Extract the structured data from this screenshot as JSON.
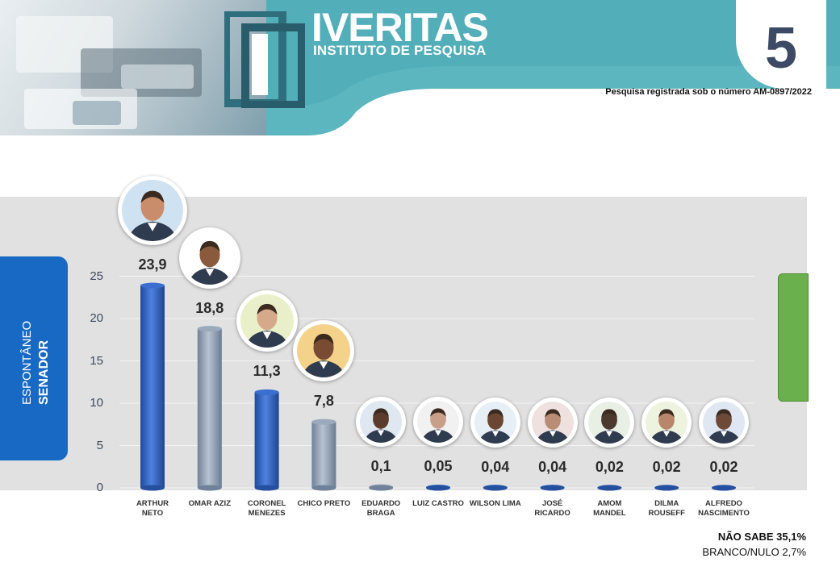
{
  "header": {
    "brand_name": "IVERITAS",
    "brand_subtitle": "INSTITUTO DE PESQUISA",
    "page_number": "5",
    "registration": "Pesquisa registrada sob o número AM-0897/2022"
  },
  "side_label": {
    "line1": "ESPONTÂNEO",
    "line2": "SENADOR"
  },
  "colors": {
    "header_teal": "#5bb6bf",
    "header_dark": "#2f6f7d",
    "bar_blue": "#2f5fbf",
    "bar_gray": "#8a9cb0",
    "plot_bg": "#e1e1e1",
    "side_label_bg": "#1769c4",
    "green_tab": "#6ab04c"
  },
  "chart_data": {
    "type": "bar",
    "title": "",
    "xlabel": "",
    "ylabel": "",
    "ylim": [
      0,
      25
    ],
    "yticks": [
      "0",
      "5",
      "10",
      "15",
      "20",
      "25"
    ],
    "grid": true,
    "categories": [
      [
        "ARTHUR",
        "NETO"
      ],
      [
        "OMAR AZIZ"
      ],
      [
        "CORONEL",
        "MENEZES"
      ],
      [
        "CHICO PRETO"
      ],
      [
        "EDUARDO",
        "BRAGA"
      ],
      [
        "LUIZ CASTRO"
      ],
      [
        "WILSON LIMA"
      ],
      [
        "JOSÉ",
        "RICARDO"
      ],
      [
        "AMOM",
        "MANDEL"
      ],
      [
        "DILMA",
        "ROUSEFF"
      ],
      [
        "ALFREDO",
        "NASCIMENTO"
      ]
    ],
    "values": [
      23.9,
      18.8,
      11.3,
      7.8,
      0.1,
      0.05,
      0.04,
      0.04,
      0.02,
      0.02,
      0.02
    ],
    "value_labels": [
      "23,9",
      "18,8",
      "11,3",
      "7,8",
      "0,1",
      "0,05",
      "0,04",
      "0,04",
      "0,02",
      "0,02",
      "0,02"
    ],
    "bar_colors": [
      "blue",
      "gray",
      "blue",
      "gray",
      "gray",
      "blue",
      "blue",
      "blue",
      "blue",
      "blue",
      "blue"
    ]
  },
  "footnotes": {
    "dont_know": "NÃO SABE 35,1%",
    "blank_null": "BRANCO/NULO 2,7%"
  }
}
